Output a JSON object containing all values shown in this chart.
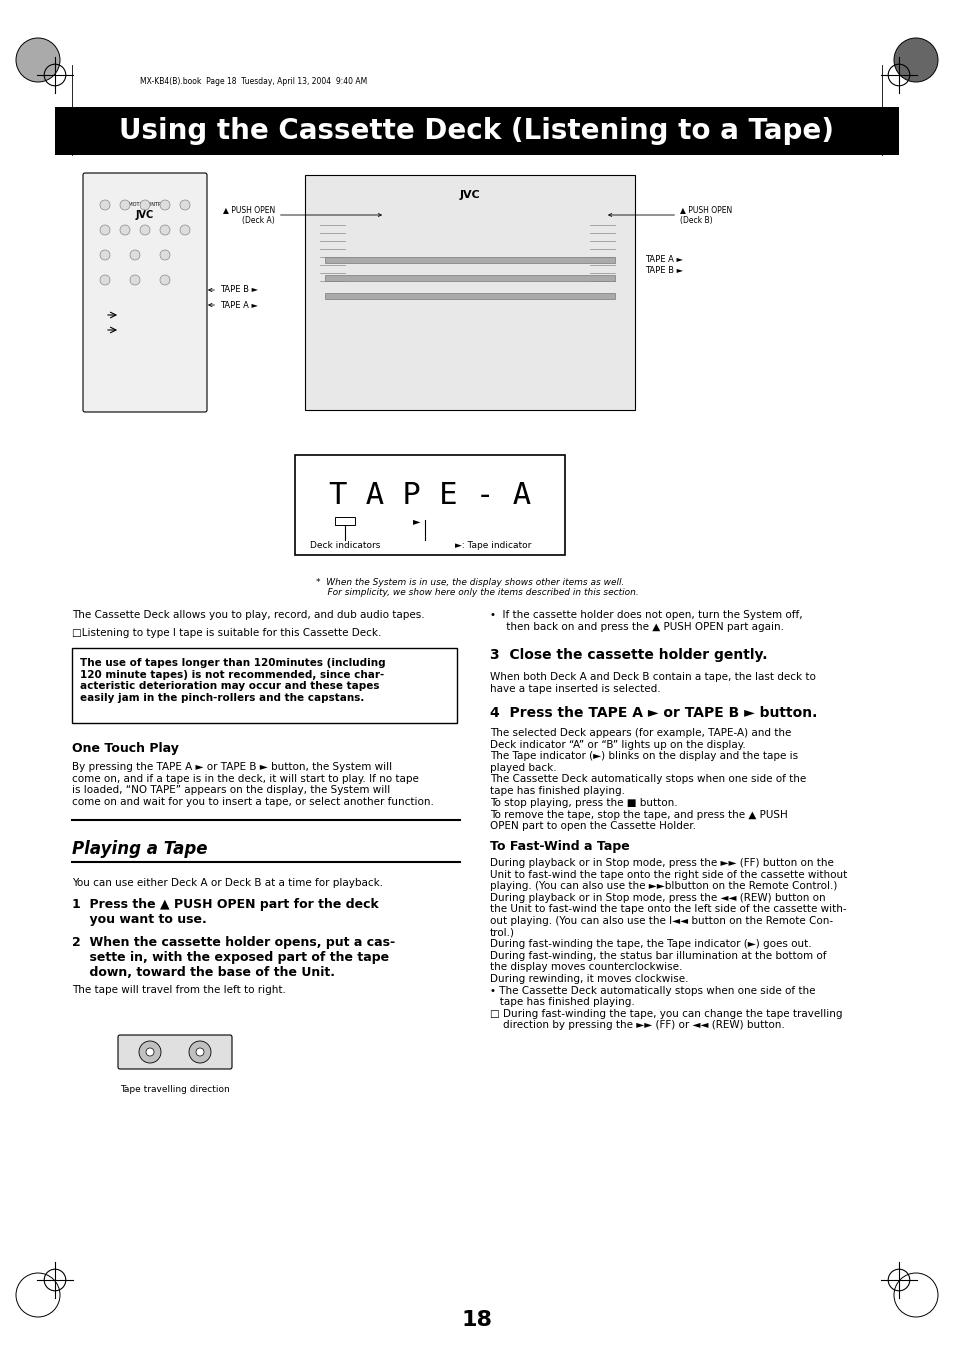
{
  "page_bg": "#ffffff",
  "header_bg": "#000000",
  "header_text": "Using the Cassette Deck (Listening to a Tape)",
  "header_text_color": "#ffffff",
  "header_fontsize": 20,
  "meta_text": "MX-KB4(B).book  Page 18  Tuesday, April 13, 2004  9:40 AM",
  "page_number": "18",
  "section_playing_title": "Playing a Tape",
  "section_onetouch_title": "One Touch Play",
  "warning_box_text": "The use of tapes longer than 120minutes (including\n120 minute tapes) is not recommended, since char-\nacteristic deterioration may occur and these tapes\neasily jam in the pinch-rollers and the capstans.",
  "intro_text1": "The Cassette Deck allows you to play, record, and dub audio tapes.",
  "intro_text2": "□Listening to type I tape is suitable for this Cassette Deck.",
  "bullet_right1": "•  If the cassette holder does not open, turn the System off,\n     then back on and press the ▲ PUSH OPEN part again.",
  "onetouch_body": "By pressing the TAPE A ► or TAPE B ► button, the System will\ncome on, and if a tape is in the deck, it will start to play. If no tape\nis loaded, “NO TAPE” appears on the display, the System will\ncome on and wait for you to insert a tape, or select another function.",
  "playing_intro": "You can use either Deck A or Deck B at a time for playback.",
  "step1_bold": "1  Press the ▲ PUSH OPEN part for the deck\n    you want to use.",
  "step2_bold": "2  When the cassette holder opens, put a cas-\n    sette in, with the exposed part of the tape\n    down, toward the base of the Unit.",
  "step2_light": "The tape will travel from the left to right.",
  "tape_travel_caption": "Tape travelling direction",
  "step3_bold": "3  Close the cassette holder gently.",
  "step3_body": "When both Deck A and Deck B contain a tape, the last deck to\nhave a tape inserted is selected.",
  "step4_bold": "4  Press the TAPE A ► or TAPE B ► button.",
  "step4_body": "The selected Deck appears (for example, TAPE-A) and the\nDeck indicator “A” or “B” lights up on the display.\nThe Tape indicator (►) blinks on the display and the tape is\nplayed back.\nThe Cassette Deck automatically stops when one side of the\ntape has finished playing.",
  "stop_text": "To stop playing, press the ■ button.\nTo remove the tape, stop the tape, and press the ▲ PUSH\nOPEN part to open the Cassette Holder.",
  "fastwind_title": "To Fast-Wind a Tape",
  "fastwind_body": "During playback or in Stop mode, press the ►► (FF) button on the\nUnit to fast-wind the tape onto the right side of the cassette without\nplaying. (You can also use the ►►blbutton on the Remote Control.)\nDuring playback or in Stop mode, press the ◄◄ (REW) button on\nthe Unit to fast-wind the tape onto the left side of the cassette with-\nout playing. (You can also use the l◄◄ button on the Remote Con-\ntrol.)\nDuring fast-winding the tape, the Tape indicator (►) goes out.\nDuring fast-winding, the status bar illumination at the bottom of\nthe display moves counterclockwise.\nDuring rewinding, it moves clockwise.\n• The Cassette Deck automatically stops when one side of the\n   tape has finished playing.\n□ During fast-winding the tape, you can change the tape travelling\n    direction by pressing the ►► (FF) or ◄◄ (REW) button.",
  "deck_indicator_label": "Deck indicators",
  "tape_indicator_label": "►: Tape indicator",
  "display_note": "*  When the System is in use, the display shows other items as well.\n    For simplicity, we show here only the items described in this section.",
  "label_tape_a_right": "TAPE A ►\nTAPE B ►",
  "label_push_open_a": "▲ PUSH OPEN\n(Deck A)",
  "label_push_open_b": "▲ PUSH OPEN\n(Deck B)",
  "label_tape_b_remote": "TAPE B ►",
  "label_tape_a_remote": "TAPE A ►"
}
